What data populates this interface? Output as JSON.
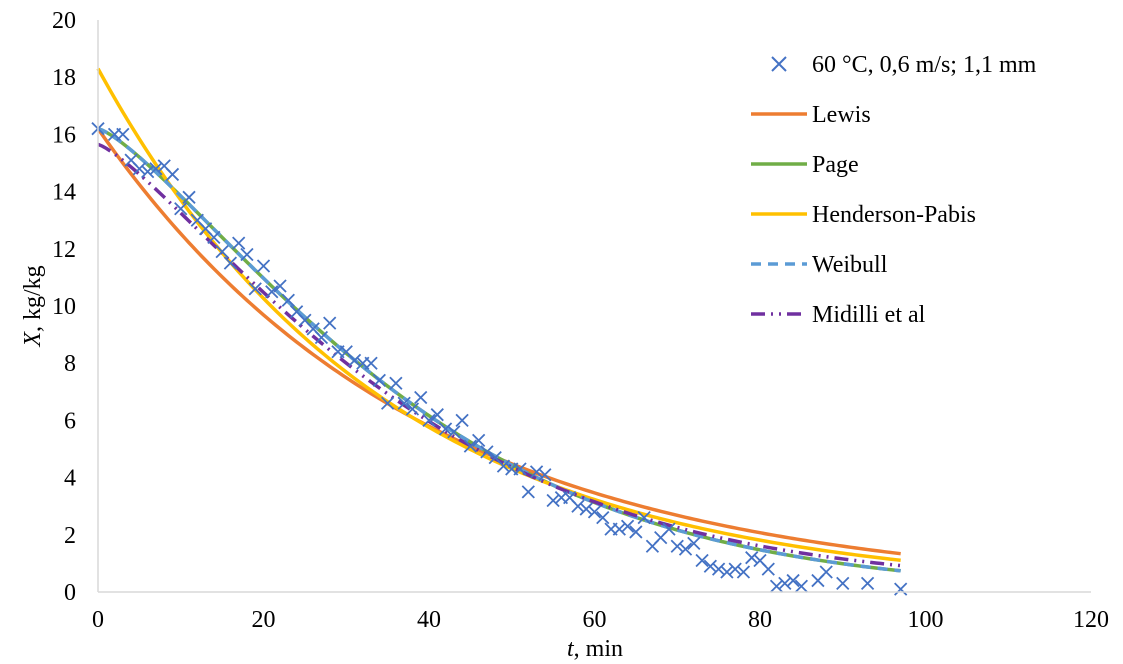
{
  "chart_data": {
    "type": "scatter",
    "xlabel_var": "t",
    "xlabel_unit": ", min",
    "ylabel_var": "X",
    "ylabel_unit": ", kg/kg",
    "xlim": [
      0,
      120
    ],
    "ylim": [
      0,
      20
    ],
    "xticks": [
      0,
      20,
      40,
      60,
      80,
      100,
      120
    ],
    "yticks": [
      0,
      2,
      4,
      6,
      8,
      10,
      12,
      14,
      16,
      18,
      20
    ],
    "grid": false,
    "legend_position": "top-right",
    "series": [
      {
        "name": "60 °C, 0,6 m/s; 1,1 mm",
        "kind": "markers",
        "color": "#4472C4",
        "x": [
          0,
          2,
          3,
          4,
          5,
          6,
          7,
          8,
          9,
          10,
          11,
          12,
          13,
          14,
          15,
          16,
          17,
          18,
          19,
          20,
          21,
          22,
          23,
          24,
          25,
          26,
          27,
          28,
          29,
          30,
          31,
          32,
          33,
          34,
          35,
          36,
          37,
          38,
          39,
          40,
          41,
          42,
          43,
          44,
          45,
          46,
          47,
          48,
          49,
          50,
          51,
          52,
          53,
          54,
          55,
          56,
          57,
          58,
          59,
          60,
          61,
          62,
          63,
          64,
          65,
          66,
          67,
          68,
          69,
          70,
          71,
          72,
          73,
          74,
          75,
          76,
          77,
          78,
          79,
          80,
          81,
          82,
          83,
          84,
          85,
          87,
          88,
          90,
          93,
          97
        ],
        "y": [
          16.2,
          16.0,
          16.0,
          15.1,
          14.8,
          14.7,
          14.8,
          14.9,
          14.6,
          13.4,
          13.8,
          13.0,
          12.7,
          12.4,
          11.9,
          11.5,
          12.2,
          11.8,
          10.6,
          11.4,
          10.5,
          10.7,
          10.2,
          9.8,
          9.5,
          9.2,
          8.9,
          9.4,
          8.4,
          8.4,
          8.1,
          8.0,
          8.0,
          7.4,
          6.6,
          7.3,
          6.6,
          6.4,
          6.8,
          6.0,
          6.2,
          5.7,
          5.6,
          6.0,
          5.1,
          5.3,
          4.9,
          4.7,
          4.4,
          4.3,
          4.3,
          3.5,
          4.2,
          4.1,
          3.2,
          3.3,
          3.3,
          3.0,
          2.9,
          2.8,
          2.6,
          2.2,
          2.2,
          2.3,
          2.1,
          2.6,
          1.6,
          1.9,
          2.2,
          1.6,
          1.5,
          1.7,
          1.1,
          0.9,
          0.8,
          0.7,
          0.8,
          0.7,
          1.2,
          1.1,
          0.8,
          0.2,
          0.3,
          0.4,
          0.2,
          0.4,
          0.7,
          0.3,
          0.3,
          0.1
        ]
      },
      {
        "name": "Lewis",
        "kind": "line",
        "color": "#ED7D31",
        "dash": "solid",
        "model": "lewis",
        "a": 16.2,
        "k": 0.0257
      },
      {
        "name": "Page",
        "kind": "line",
        "color": "#70AD47",
        "dash": "solid",
        "model": "page",
        "a": 16.2,
        "k": 0.0077,
        "n": 1.31
      },
      {
        "name": "Henderson-Pabis",
        "kind": "line",
        "color": "#FFC000",
        "dash": "solid",
        "model": "lewis",
        "a": 18.3,
        "k": 0.0289
      },
      {
        "name": "Weibull",
        "kind": "line",
        "color": "#5B9BD5",
        "dash": "10 7",
        "model": "page",
        "a": 16.2,
        "k": 0.0077,
        "n": 1.31
      },
      {
        "name": "Midilli et al",
        "kind": "line",
        "color": "#7030A0",
        "dash": "14 6 2 6 2 6",
        "model": "midilli",
        "a": 15.65,
        "k": 0.009,
        "n": 1.27,
        "b": 0.0015
      }
    ]
  }
}
